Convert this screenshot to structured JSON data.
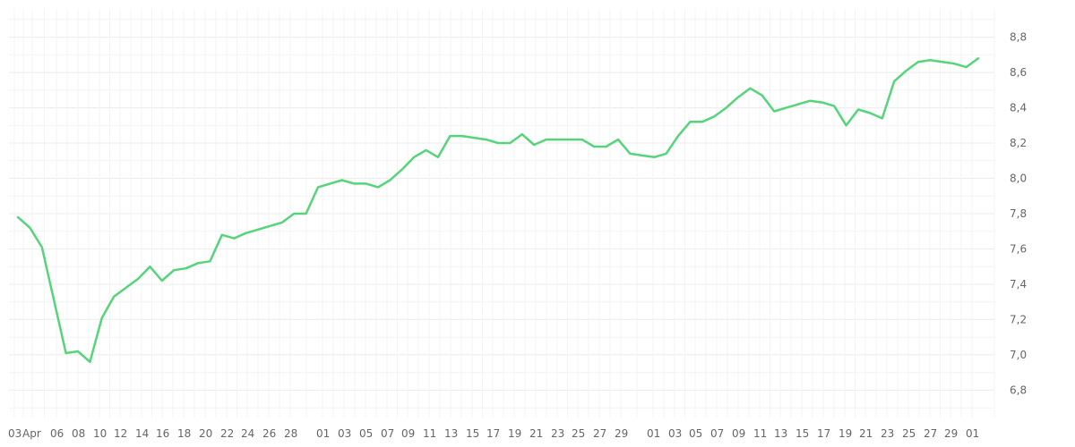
{
  "chart_data": {
    "type": "line",
    "title": "",
    "xlabel": "",
    "ylabel": "",
    "grid": true,
    "colors": {
      "line": "#56d47a",
      "grid": "#ececec",
      "text": "#666666"
    },
    "ylim": [
      6.64,
      8.96
    ],
    "y_ticks": [
      "6,8",
      "7,0",
      "7,2",
      "7,4",
      "7,6",
      "7,8",
      "8,0",
      "8,2",
      "8,4",
      "8,6",
      "8,8"
    ],
    "x_ticks": [
      "03",
      "Apr",
      "06",
      "08",
      "10",
      "12",
      "14",
      "16",
      "18",
      "20",
      "22",
      "24",
      "26",
      "28",
      "01",
      "03",
      "05",
      "07",
      "09",
      "11",
      "13",
      "15",
      "17",
      "19",
      "21",
      "23",
      "25",
      "27",
      "29",
      "01",
      "03",
      "05",
      "07",
      "09",
      "11",
      "13",
      "15",
      "17",
      "19",
      "21",
      "23",
      "25",
      "27",
      "29",
      "01"
    ],
    "series": [
      {
        "values": [
          7.78,
          7.72,
          7.61,
          7.31,
          7.01,
          7.02,
          6.96,
          7.21,
          7.33,
          7.38,
          7.43,
          7.5,
          7.42,
          7.48,
          7.49,
          7.52,
          7.53,
          7.68,
          7.66,
          7.69,
          7.71,
          7.73,
          7.75,
          7.8,
          7.8,
          7.95,
          7.97,
          7.99,
          7.97,
          7.97,
          7.95,
          7.99,
          8.05,
          8.12,
          8.16,
          8.12,
          8.24,
          8.24,
          8.23,
          8.22,
          8.2,
          8.2,
          8.25,
          8.19,
          8.22,
          8.22,
          8.22,
          8.22,
          8.18,
          8.18,
          8.22,
          8.14,
          8.13,
          8.12,
          8.14,
          8.24,
          8.32,
          8.32,
          8.35,
          8.4,
          8.46,
          8.51,
          8.47,
          8.38,
          8.4,
          8.42,
          8.44,
          8.43,
          8.41,
          8.3,
          8.39,
          8.37,
          8.34,
          8.55,
          8.61,
          8.66,
          8.67,
          8.66,
          8.65,
          8.63,
          8.68
        ]
      }
    ]
  }
}
